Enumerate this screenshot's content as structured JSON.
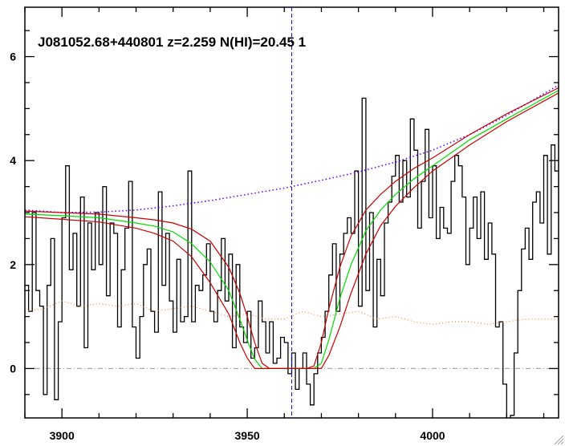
{
  "chart_data": {
    "type": "line",
    "title": "J081052.68+440801 z=2.259 N(HI)=20.45 1",
    "xlabel": "",
    "ylabel": "",
    "xlim": [
      3890,
      4034
    ],
    "ylim": [
      -0.95,
      6.95
    ],
    "x_ticks": [
      3900,
      3950,
      4000
    ],
    "y_ticks": [
      0,
      2,
      4,
      6
    ],
    "x_minor_step": 10,
    "y_minor_step": 0.5,
    "grid": false,
    "legend": "none",
    "line_center_x": 3962,
    "colors": {
      "spectrum": "#000000",
      "model_center": "#00dd00",
      "model_bounds": "#cc0000",
      "continuum": "#6b00ff",
      "error": "#ff8040",
      "zero_line": "#999999",
      "center_marker": "#1010cc"
    },
    "series": [
      {
        "role": "flux_spectrum",
        "style": "histogram",
        "x": [
          3890,
          3891,
          3892,
          3893,
          3894,
          3895,
          3896,
          3897,
          3898,
          3899,
          3900,
          3901,
          3902,
          3903,
          3904,
          3905,
          3906,
          3907,
          3908,
          3909,
          3910,
          3911,
          3912,
          3913,
          3914,
          3915,
          3916,
          3917,
          3918,
          3919,
          3920,
          3921,
          3922,
          3923,
          3924,
          3925,
          3926,
          3927,
          3928,
          3929,
          3930,
          3931,
          3932,
          3933,
          3934,
          3935,
          3936,
          3937,
          3938,
          3939,
          3940,
          3941,
          3942,
          3943,
          3944,
          3945,
          3946,
          3947,
          3948,
          3949,
          3950,
          3951,
          3952,
          3953,
          3954,
          3955,
          3956,
          3957,
          3958,
          3959,
          3960,
          3961,
          3962,
          3963,
          3964,
          3965,
          3966,
          3967,
          3968,
          3969,
          3970,
          3971,
          3972,
          3973,
          3974,
          3975,
          3976,
          3977,
          3978,
          3979,
          3980,
          3981,
          3982,
          3983,
          3984,
          3985,
          3986,
          3987,
          3988,
          3989,
          3990,
          3991,
          3992,
          3993,
          3994,
          3995,
          3996,
          3997,
          3998,
          3999,
          4000,
          4001,
          4002,
          4003,
          4004,
          4005,
          4006,
          4007,
          4008,
          4009,
          4010,
          4011,
          4012,
          4013,
          4014,
          4015,
          4016,
          4017,
          4018,
          4019,
          4020,
          4021,
          4022,
          4023,
          4024,
          4025,
          4026,
          4027,
          4028,
          4029,
          4030,
          4031,
          4032,
          4033
        ],
        "y": [
          1.6,
          1.1,
          3.0,
          1.5,
          1.2,
          -0.5,
          1.6,
          2.5,
          -0.6,
          0.9,
          2.9,
          3.9,
          1.9,
          2.6,
          1.2,
          3.3,
          0.4,
          2.8,
          1.9,
          3.0,
          2.0,
          3.5,
          1.4,
          2.8,
          2.6,
          0.8,
          1.9,
          2.7,
          3.6,
          0.8,
          0.2,
          1.0,
          2.0,
          2.3,
          1.1,
          0.7,
          3.4,
          1.6,
          2.6,
          1.3,
          0.7,
          2.1,
          0.9,
          1.0,
          3.8,
          0.9,
          1.6,
          1.5,
          1.8,
          2.4,
          1.1,
          0.9,
          1.5,
          2.5,
          1.3,
          2.2,
          0.4,
          2.0,
          0.8,
          0.5,
          1.1,
          0.2,
          0.4,
          1.3,
          0.9,
          0.3,
          0.9,
          0.1,
          0.2,
          0.6,
          0.5,
          -0.1,
          0.3,
          -0.4,
          0.0,
          0.3,
          -0.3,
          -0.7,
          -0.1,
          0.3,
          0.6,
          1.1,
          1.8,
          2.4,
          1.1,
          2.2,
          2.6,
          2.9,
          2.6,
          3.8,
          1.2,
          5.2,
          1.5,
          3.0,
          0.8,
          2.1,
          1.4,
          2.8,
          3.2,
          3.7,
          4.1,
          3.2,
          4.0,
          3.3,
          4.8,
          4.2,
          2.7,
          3.6,
          4.6,
          2.9,
          3.9,
          2.5,
          3.1,
          2.7,
          2.6,
          3.6,
          4.1,
          3.9,
          3.3,
          2.0,
          2.7,
          3.3,
          2.5,
          3.4,
          2.1,
          2.8,
          2.2,
          0.8,
          0.9,
          -0.3,
          -1.0,
          -0.9,
          0.3,
          1.5,
          2.3,
          2.7,
          2.1,
          3.2,
          3.4,
          2.8,
          4.1,
          2.2,
          4.3,
          3.8
        ]
      },
      {
        "role": "continuum",
        "style": "dotted",
        "x": [
          3890,
          3900,
          3910,
          3920,
          3930,
          3940,
          3950,
          3960,
          3970,
          3980,
          3990,
          4000,
          4010,
          4020,
          4034
        ],
        "y": [
          3.05,
          3.0,
          3.01,
          3.05,
          3.13,
          3.23,
          3.35,
          3.47,
          3.62,
          3.78,
          3.97,
          4.2,
          4.5,
          4.87,
          5.45
        ]
      },
      {
        "role": "error",
        "style": "dotted",
        "x": [
          3890,
          3895,
          3900,
          3905,
          3910,
          3915,
          3920,
          3925,
          3930,
          3935,
          3940,
          3945,
          3950,
          3955,
          3960,
          3965,
          3970,
          3975,
          3980,
          3985,
          3990,
          3995,
          4000,
          4005,
          4010,
          4015,
          4020,
          4025,
          4030,
          4034
        ],
        "y": [
          1.1,
          1.15,
          1.3,
          1.2,
          1.25,
          1.2,
          1.25,
          1.1,
          1.15,
          1.2,
          1.1,
          1.0,
          1.05,
          0.95,
          0.95,
          1.1,
          1.0,
          1.05,
          1.1,
          0.95,
          1.0,
          0.9,
          0.85,
          0.9,
          0.9,
          0.85,
          0.9,
          0.95,
          0.95,
          0.95
        ]
      },
      {
        "role": "model_upper",
        "style": "solid",
        "x": [
          3890,
          3900,
          3910,
          3920,
          3925,
          3930,
          3935,
          3940,
          3945,
          3948,
          3950,
          3952,
          3954,
          3956,
          3958,
          3960,
          3962,
          3964,
          3966,
          3968,
          3970,
          3972,
          3975,
          3978,
          3982,
          3986,
          3990,
          3995,
          4000,
          4010,
          4020,
          4034
        ],
        "y": [
          3.03,
          3.0,
          2.97,
          2.9,
          2.86,
          2.8,
          2.68,
          2.45,
          1.95,
          1.45,
          1.0,
          0.5,
          0.1,
          0.0,
          0.0,
          0.0,
          0.0,
          0.0,
          0.0,
          0.05,
          0.5,
          1.15,
          1.95,
          2.55,
          3.05,
          3.35,
          3.6,
          3.85,
          4.05,
          4.5,
          4.9,
          5.4
        ]
      },
      {
        "role": "model_center",
        "style": "solid",
        "x": [
          3890,
          3900,
          3910,
          3920,
          3925,
          3930,
          3935,
          3940,
          3945,
          3948,
          3950,
          3952,
          3954,
          3956,
          3958,
          3960,
          3962,
          3964,
          3966,
          3968,
          3970,
          3972,
          3975,
          3978,
          3982,
          3986,
          3990,
          3995,
          4000,
          4010,
          4020,
          4034
        ],
        "y": [
          2.97,
          2.94,
          2.9,
          2.8,
          2.74,
          2.63,
          2.4,
          2.05,
          1.5,
          0.95,
          0.55,
          0.18,
          0.0,
          0.0,
          0.0,
          0.0,
          0.0,
          0.0,
          0.0,
          0.0,
          0.1,
          0.55,
          1.35,
          2.0,
          2.65,
          3.05,
          3.35,
          3.65,
          3.9,
          4.4,
          4.8,
          5.35
        ]
      },
      {
        "role": "model_lower",
        "style": "solid",
        "x": [
          3890,
          3900,
          3910,
          3920,
          3925,
          3930,
          3935,
          3940,
          3945,
          3948,
          3950,
          3952,
          3954,
          3956,
          3958,
          3960,
          3962,
          3964,
          3966,
          3968,
          3970,
          3972,
          3975,
          3978,
          3982,
          3986,
          3990,
          3995,
          4000,
          4010,
          4020,
          4034
        ],
        "y": [
          2.92,
          2.87,
          2.82,
          2.7,
          2.6,
          2.45,
          2.15,
          1.65,
          1.05,
          0.5,
          0.2,
          0.0,
          0.0,
          0.0,
          0.0,
          0.0,
          0.0,
          0.0,
          0.0,
          0.0,
          0.0,
          0.25,
          0.8,
          1.45,
          2.2,
          2.75,
          3.12,
          3.48,
          3.8,
          4.3,
          4.75,
          5.3
        ]
      }
    ]
  }
}
